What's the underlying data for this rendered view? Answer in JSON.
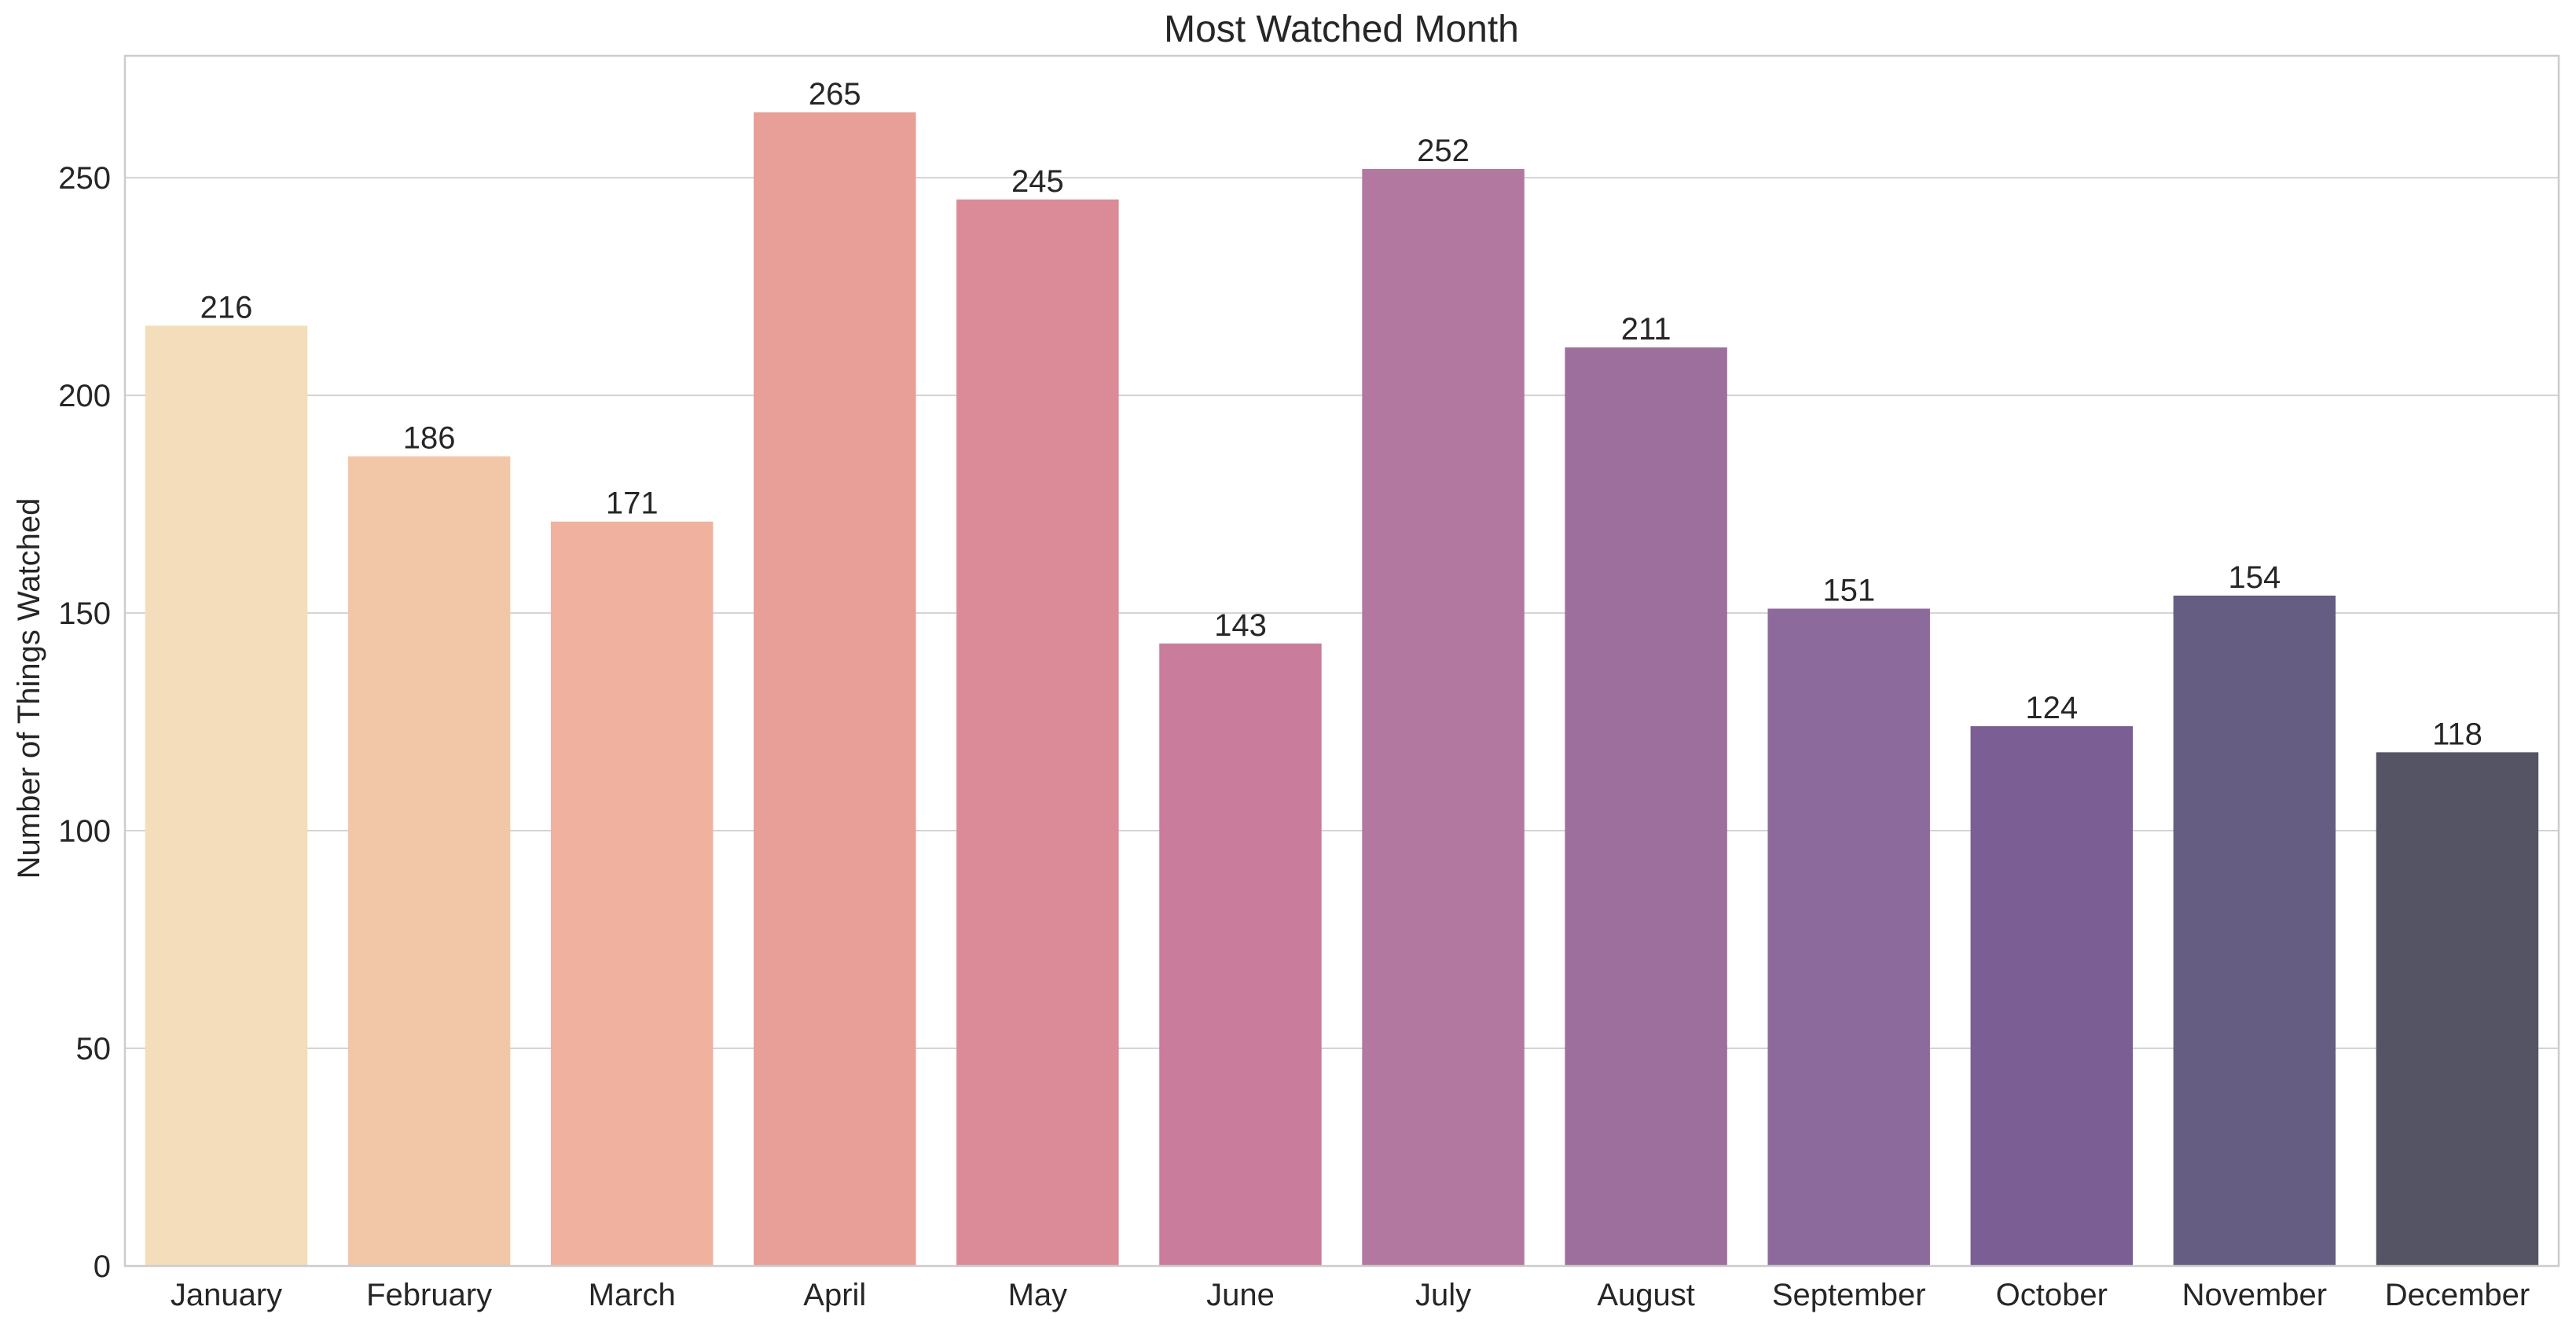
{
  "chart_data": {
    "type": "bar",
    "title": "Most Watched Month",
    "xlabel": "",
    "ylabel": "Number of Things Watched",
    "categories": [
      "January",
      "February",
      "March",
      "April",
      "May",
      "June",
      "July",
      "August",
      "September",
      "October",
      "November",
      "December"
    ],
    "values": [
      216,
      186,
      171,
      265,
      245,
      143,
      252,
      211,
      151,
      124,
      154,
      118
    ],
    "ylim": [
      0,
      278
    ],
    "yticks": [
      0,
      50,
      100,
      150,
      200,
      250
    ],
    "grid": true,
    "colors": [
      "#f4ddbb",
      "#f2c7a8",
      "#f0b29f",
      "#e89f97",
      "#db8b97",
      "#c97c9c",
      "#b3789f",
      "#9d6f9c",
      "#8d6a9c",
      "#7b5e94",
      "#655d82",
      "#555464"
    ]
  }
}
